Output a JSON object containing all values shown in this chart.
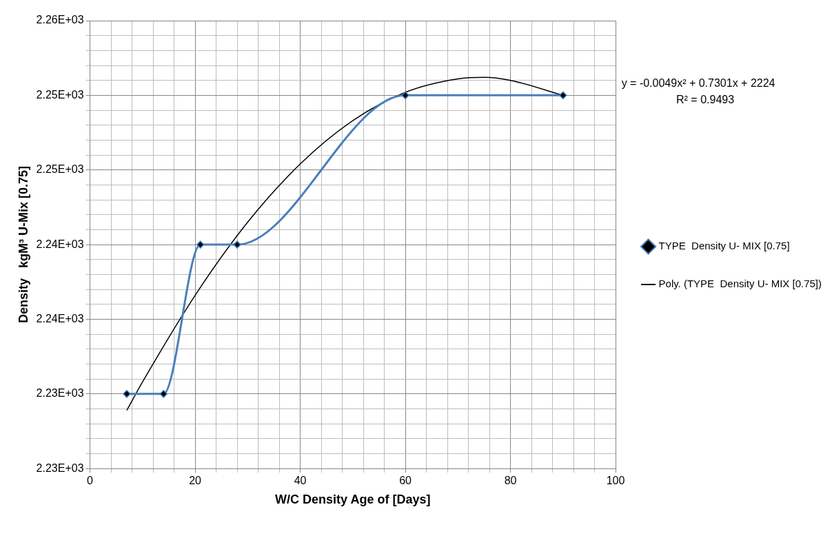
{
  "chart_data": {
    "type": "line",
    "xlabel": "W/C Density Age of [Days]",
    "ylabel": "Density   kgM³ U-Mix [0.75]",
    "x": [
      7,
      14,
      21,
      28,
      60,
      90
    ],
    "series": [
      {
        "name": "TYPE  Density U- MIX [0.75]",
        "color": "#4a7ebb",
        "values": [
          2230,
          2230,
          2240,
          2240,
          2250,
          2250
        ],
        "marker": "diamond"
      },
      {
        "name": "Poly. (TYPE  Density U- MIX [0.75])",
        "color": "#000000",
        "type": "line",
        "marker": "none",
        "x": [
          7,
          10,
          20,
          30,
          40,
          50,
          60,
          70,
          75,
          80,
          90
        ],
        "values": [
          2228.9,
          2230.8,
          2236.6,
          2241.5,
          2245.4,
          2248.3,
          2250.2,
          2251.1,
          2251.2,
          2251.0,
          2250.0
        ]
      }
    ],
    "xlim": [
      0,
      100
    ],
    "xticks": [
      0,
      {
        "value": 4,
        "label": null
      },
      {
        "value": 8,
        "label": null
      },
      {
        "value": 12,
        "label": null
      },
      {
        "value": 16,
        "label": null
      },
      20,
      {
        "value": 24,
        "label": null
      },
      {
        "value": 28,
        "label": null
      },
      {
        "value": 32,
        "label": null
      },
      {
        "value": 36,
        "label": null
      },
      40,
      {
        "value": 44,
        "label": null
      },
      {
        "value": 48,
        "label": null
      },
      {
        "value": 52,
        "label": null
      },
      {
        "value": 56,
        "label": null
      },
      60,
      {
        "value": 64,
        "label": null
      },
      {
        "value": 68,
        "label": null
      },
      {
        "value": 72,
        "label": null
      },
      {
        "value": 76,
        "label": null
      },
      80,
      {
        "value": 84,
        "label": null
      },
      {
        "value": 88,
        "label": null
      },
      {
        "value": 92,
        "label": null
      },
      {
        "value": 96,
        "label": null
      },
      100
    ],
    "ylim": [
      2225,
      2255
    ],
    "yticks": [
      {
        "value": 2225,
        "label": "2.23E+03"
      },
      {
        "value": 2226,
        "label": null
      },
      {
        "value": 2227,
        "label": null
      },
      {
        "value": 2228,
        "label": null
      },
      {
        "value": 2229,
        "label": null
      },
      {
        "value": 2230,
        "label": "2.23E+03"
      },
      {
        "value": 2231,
        "label": null
      },
      {
        "value": 2232,
        "label": null
      },
      {
        "value": 2233,
        "label": null
      },
      {
        "value": 2234,
        "label": null
      },
      {
        "value": 2235,
        "label": "2.24E+03"
      },
      {
        "value": 2236,
        "label": null
      },
      {
        "value": 2237,
        "label": null
      },
      {
        "value": 2238,
        "label": null
      },
      {
        "value": 2239,
        "label": null
      },
      {
        "value": 2240,
        "label": "2.24E+03"
      },
      {
        "value": 2241,
        "label": null
      },
      {
        "value": 2242,
        "label": null
      },
      {
        "value": 2243,
        "label": null
      },
      {
        "value": 2244,
        "label": null
      },
      {
        "value": 2245,
        "label": "2.25E+03"
      },
      {
        "value": 2246,
        "label": null
      },
      {
        "value": 2247,
        "label": null
      },
      {
        "value": 2248,
        "label": null
      },
      {
        "value": 2249,
        "label": null
      },
      {
        "value": 2250,
        "label": "2.25E+03"
      },
      {
        "value": 2251,
        "label": null
      },
      {
        "value": 2252,
        "label": null
      },
      {
        "value": 2253,
        "label": null
      },
      {
        "value": 2254,
        "label": null
      },
      {
        "value": 2255,
        "label": "2.26E+03"
      }
    ],
    "grid": true,
    "legend": "right",
    "line_style": "solid",
    "annotations": [
      "y = -0.0049x² + 0.7301x + 2224",
      "R² = 0.9493"
    ]
  }
}
